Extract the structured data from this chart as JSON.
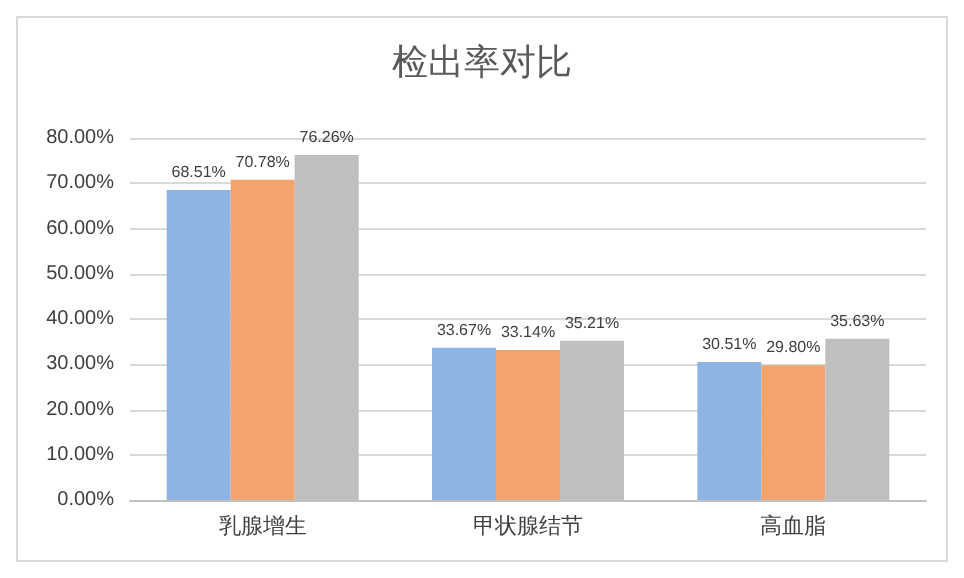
{
  "chart_data": {
    "type": "bar",
    "title": "检出率对比",
    "categories": [
      "乳腺增生",
      "甲状腺结节",
      "高血脂"
    ],
    "series": [
      {
        "color": "#8db4e2",
        "values": [
          68.51,
          33.67,
          30.51
        ],
        "value_labels": [
          "68.51%",
          "33.67%",
          "30.51%"
        ]
      },
      {
        "color": "#f4a46e",
        "values": [
          70.78,
          33.14,
          29.8
        ],
        "value_labels": [
          "70.78%",
          "33.14%",
          "29.80%"
        ]
      },
      {
        "color": "#bfbfbf",
        "values": [
          76.26,
          35.21,
          35.63
        ],
        "value_labels": [
          "76.26%",
          "35.21%",
          "35.63%"
        ]
      }
    ],
    "ylim": [
      0,
      80
    ],
    "yticks": [
      {
        "value": 0,
        "label": "0.00%"
      },
      {
        "value": 10,
        "label": "10.00%"
      },
      {
        "value": 20,
        "label": "20.00%"
      },
      {
        "value": 30,
        "label": "30.00%"
      },
      {
        "value": 40,
        "label": "40.00%"
      },
      {
        "value": 50,
        "label": "50.00%"
      },
      {
        "value": 60,
        "label": "60.00%"
      },
      {
        "value": 70,
        "label": "70.00%"
      },
      {
        "value": 80,
        "label": "80.00%"
      }
    ],
    "grid": "y"
  }
}
